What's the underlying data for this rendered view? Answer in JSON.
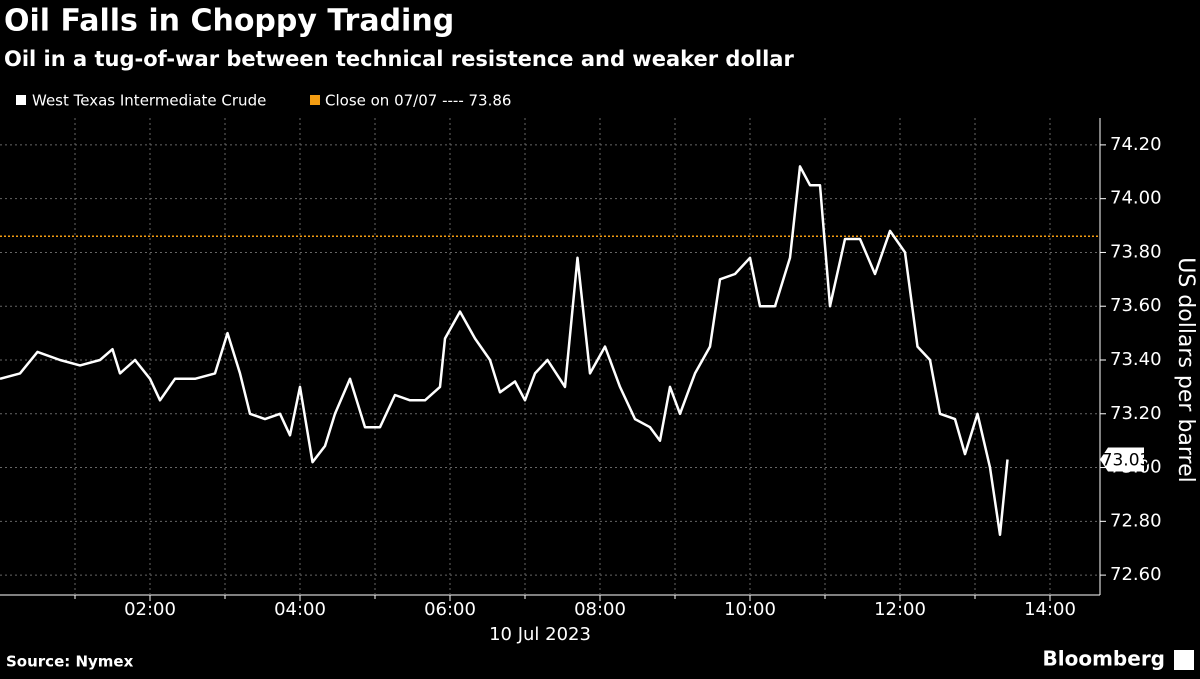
{
  "chart_data": {
    "type": "line",
    "title": "Oil Falls in Choppy Trading",
    "subtitle": "Oil in a tug-of-war between technical resistence and weaker dollar",
    "x_date_label": "10 Jul 2023",
    "y_axis_label": "US dollars per barrel",
    "source": "Source: Nymex",
    "brand": "Bloomberg",
    "x": [
      "00:00",
      "00:16",
      "00:30",
      "00:48",
      "01:04",
      "01:20",
      "01:30",
      "01:36",
      "01:48",
      "02:00",
      "02:08",
      "02:20",
      "02:36",
      "02:52",
      "03:02",
      "03:12",
      "03:20",
      "03:32",
      "03:44",
      "03:52",
      "04:00",
      "04:10",
      "04:20",
      "04:28",
      "04:40",
      "04:52",
      "05:04",
      "05:16",
      "05:28",
      "05:40",
      "05:52",
      "05:56",
      "06:08",
      "06:20",
      "06:32",
      "06:40",
      "06:52",
      "07:00",
      "07:08",
      "07:18",
      "07:32",
      "07:42",
      "07:52",
      "08:04",
      "08:16",
      "08:28",
      "08:40",
      "08:48",
      "08:56",
      "09:04",
      "09:16",
      "09:28",
      "09:36",
      "09:48",
      "10:00",
      "10:08",
      "10:20",
      "10:32",
      "10:40",
      "10:48",
      "10:56",
      "11:04",
      "11:16",
      "11:28",
      "11:40",
      "11:52",
      "12:04",
      "12:14",
      "12:24",
      "12:32",
      "12:44",
      "12:52",
      "13:02",
      "13:12",
      "13:20",
      "13:26"
    ],
    "series": [
      {
        "name": "West Texas Intermediate Crude",
        "color": "#ffffff",
        "values": [
          73.33,
          73.35,
          73.43,
          73.4,
          73.38,
          73.4,
          73.44,
          73.35,
          73.4,
          73.33,
          73.25,
          73.33,
          73.33,
          73.35,
          73.5,
          73.35,
          73.2,
          73.18,
          73.2,
          73.12,
          73.3,
          73.02,
          73.08,
          73.2,
          73.33,
          73.15,
          73.15,
          73.27,
          73.25,
          73.25,
          73.3,
          73.48,
          73.58,
          73.48,
          73.4,
          73.28,
          73.32,
          73.25,
          73.35,
          73.4,
          73.3,
          73.78,
          73.35,
          73.45,
          73.3,
          73.18,
          73.15,
          73.1,
          73.3,
          73.2,
          73.35,
          73.45,
          73.7,
          73.72,
          73.78,
          73.6,
          73.6,
          73.78,
          74.12,
          74.05,
          74.05,
          73.6,
          73.85,
          73.85,
          73.72,
          73.88,
          73.8,
          73.45,
          73.4,
          73.2,
          73.18,
          73.05,
          73.2,
          73.0,
          72.75,
          73.03
        ]
      }
    ],
    "reference_line": {
      "label": "Close on 07/07 ---- 73.86",
      "value": 73.86,
      "color": "#f39c12"
    },
    "xlim": [
      "00:00",
      "14:40"
    ],
    "xticks": [
      "02:00",
      "04:00",
      "06:00",
      "08:00",
      "10:00",
      "12:00",
      "14:00"
    ],
    "x_minor_ticks": [
      "01:00",
      "03:00",
      "05:00",
      "07:00",
      "09:00",
      "11:00",
      "13:00"
    ],
    "ylim": [
      72.526,
      74.3
    ],
    "yticks": [
      {
        "value": 72.6,
        "label": "72.60"
      },
      {
        "value": 72.8,
        "label": "72.80"
      },
      {
        "value": 73.0,
        "label": "73.00"
      },
      {
        "value": 73.2,
        "label": "73.20"
      },
      {
        "value": 73.4,
        "label": "73.40"
      },
      {
        "value": 73.6,
        "label": "73.60"
      },
      {
        "value": 73.8,
        "label": "73.80"
      },
      {
        "value": 74.0,
        "label": "74.00"
      },
      {
        "value": 74.2,
        "label": "74.20"
      }
    ],
    "grid": true
  }
}
